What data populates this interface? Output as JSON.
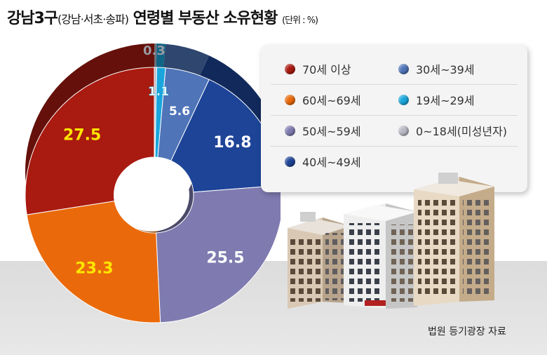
{
  "title": {
    "main": "강남3구",
    "sub": "(강남·서초·송파)",
    "rest": " 연령별 부동산 소유현황 ",
    "unit": "(단위 : %)"
  },
  "source": "법원 등기광장 자료",
  "chart_data": {
    "type": "pie",
    "style": "3d-donut",
    "start": "top, clockwise",
    "title": "강남3구(강남·서초·송파) 연령별 부동산 소유현황",
    "unit": "%",
    "slices": [
      {
        "name": "0~18세(미성년자)",
        "value": 0.3,
        "label": "0.3",
        "color": "#b9b9c4"
      },
      {
        "name": "19세~29세",
        "value": 1.1,
        "label": "1.1",
        "color": "#1aa6dd"
      },
      {
        "name": "30세~39세",
        "value": 5.6,
        "label": "5.6",
        "color": "#4f74b8"
      },
      {
        "name": "40세~49세",
        "value": 16.8,
        "label": "16.8",
        "color": "#1d4497"
      },
      {
        "name": "50세~59세",
        "value": 25.5,
        "label": "25.5",
        "color": "#7f7bb0"
      },
      {
        "name": "60세~69세",
        "value": 23.3,
        "label": "23.3",
        "color": "#ea6a0b"
      },
      {
        "name": "70세 이상",
        "value": 27.5,
        "label": "27.5",
        "color": "#a91a10"
      }
    ],
    "legend": {
      "placement": "right",
      "rows": [
        [
          {
            "label": "70세 이상",
            "color": "#a91a10"
          },
          {
            "label": "30세~39세",
            "color": "#4f74b8"
          }
        ],
        [
          {
            "label": "60세~69세",
            "color": "#ea6a0b"
          },
          {
            "label": "19세~29세",
            "color": "#1aa6dd"
          }
        ],
        [
          {
            "label": "50세~59세",
            "color": "#7f7bb0"
          },
          {
            "label": "0~18세(미성년자)",
            "color": "#b9b9c4"
          }
        ],
        [
          {
            "label": "40세~49세",
            "color": "#1d4497"
          }
        ]
      ]
    }
  }
}
